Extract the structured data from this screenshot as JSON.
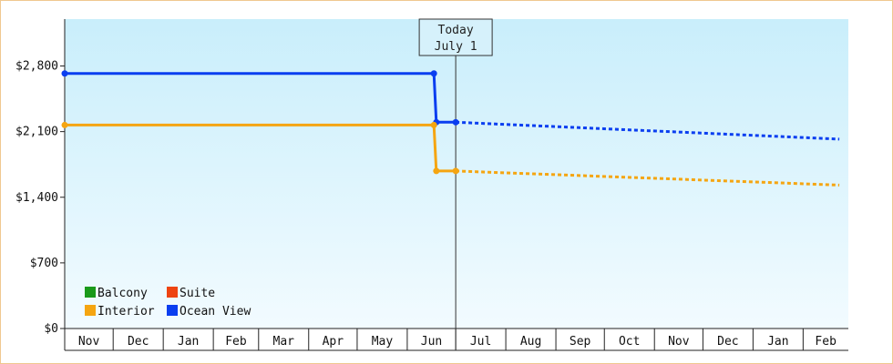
{
  "chart_data": {
    "type": "line",
    "title": "",
    "xlabel": "",
    "ylabel": "",
    "ylim": [
      0,
      3300
    ],
    "yticks": [
      0,
      700,
      1400,
      2100,
      2800
    ],
    "ytick_labels": [
      "$0",
      "$700",
      "$1,400",
      "$2,100",
      "$2,800"
    ],
    "x_start_month_index": 0,
    "months": [
      "Nov",
      "Dec",
      "Jan",
      "Feb",
      "Mar",
      "Apr",
      "May",
      "Jun",
      "Jul",
      "Aug",
      "Sep",
      "Oct",
      "Nov",
      "Dec",
      "Jan",
      "Feb"
    ],
    "month_days": [
      30,
      31,
      31,
      28,
      31,
      30,
      31,
      30,
      31,
      31,
      30,
      31,
      30,
      31,
      31,
      28
    ],
    "today": {
      "line1": "Today",
      "line2": "July 1",
      "month_pos": 8.0
    },
    "grid": false,
    "legend_position": "bottom-left",
    "legend": [
      {
        "name": "Balcony",
        "color": "#1a9a1a"
      },
      {
        "name": "Suite",
        "color": "#ee4411"
      },
      {
        "name": "Interior",
        "color": "#f5a511"
      },
      {
        "name": "Ocean View",
        "color": "#0a3ef0"
      }
    ],
    "series": [
      {
        "name": "Ocean View",
        "color": "#0a3ef0",
        "actual": [
          {
            "m": 0.0,
            "y": 2720
          },
          {
            "m": 7.55,
            "y": 2720
          },
          {
            "m": 7.6,
            "y": 2200
          },
          {
            "m": 8.0,
            "y": 2200
          }
        ],
        "markers": [
          0.0,
          7.55,
          7.6,
          8.0
        ],
        "forecast": [
          {
            "m": 8.0,
            "y": 2200
          },
          {
            "m": 15.8,
            "y": 2020
          }
        ]
      },
      {
        "name": "Interior",
        "color": "#f5a511",
        "actual": [
          {
            "m": 0.0,
            "y": 2170
          },
          {
            "m": 7.55,
            "y": 2170
          },
          {
            "m": 7.6,
            "y": 1680
          },
          {
            "m": 8.0,
            "y": 1680
          }
        ],
        "markers": [
          0.0,
          7.55,
          7.6,
          8.0
        ],
        "forecast": [
          {
            "m": 8.0,
            "y": 1680
          },
          {
            "m": 15.8,
            "y": 1530
          }
        ]
      }
    ]
  }
}
